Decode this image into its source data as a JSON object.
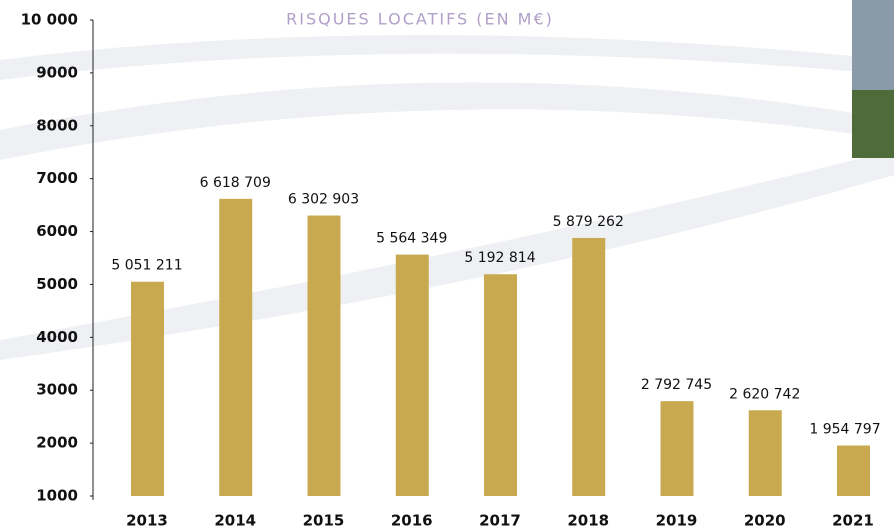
{
  "chart_data": {
    "type": "bar",
    "title": "RISQUES LOCATIFS (EN M€)",
    "categories": [
      "2013",
      "2014",
      "2015",
      "2016",
      "2017",
      "2018",
      "2019",
      "2020",
      "2021"
    ],
    "values": [
      5051.211,
      6618.709,
      6302.903,
      5564.349,
      5192.814,
      5879.262,
      2792.745,
      2620.742,
      1954.797
    ],
    "value_labels": [
      "5 051 211",
      "6 618 709",
      "6 302 903",
      "5 564 349",
      "5 192 814",
      "5 879 262",
      "2 792 745",
      "2 620 742",
      "1 954 797"
    ],
    "color": "#c9a94f",
    "ylim": [
      1000,
      10000
    ],
    "yticks": [
      1000,
      2000,
      3000,
      4000,
      5000,
      6000,
      7000,
      8000,
      9000,
      {
        "value": 10000,
        "label": "10 000"
      }
    ],
    "grid": false
  }
}
